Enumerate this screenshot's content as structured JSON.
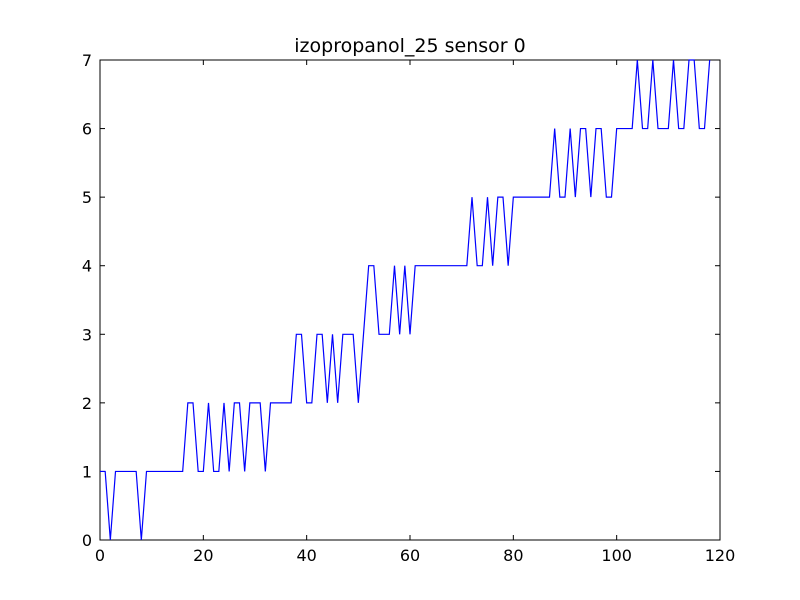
{
  "chart_data": {
    "type": "line",
    "title": "izopropanol_25 sensor 0",
    "xlabel": "",
    "ylabel": "",
    "xlim": [
      0,
      120
    ],
    "ylim": [
      0,
      7
    ],
    "xticks": [
      "0",
      "20",
      "40",
      "60",
      "80",
      "100",
      "120"
    ],
    "yticks": [
      "0",
      "1",
      "2",
      "3",
      "4",
      "5",
      "6",
      "7"
    ],
    "grid": false,
    "legend": "none",
    "line_color": "#0000ff",
    "series": [
      {
        "x": [
          0,
          1,
          2,
          3,
          4,
          5,
          6,
          7,
          8,
          9,
          10,
          11,
          12,
          13,
          14,
          15,
          16,
          17,
          18,
          19,
          20,
          21,
          22,
          23,
          24,
          25,
          26,
          27,
          28,
          29,
          30,
          31,
          32,
          33,
          34,
          35,
          36,
          37,
          38,
          39,
          40,
          41,
          42,
          43,
          44,
          45,
          46,
          47,
          48,
          49,
          50,
          51,
          52,
          53,
          54,
          55,
          56,
          57,
          58,
          59,
          60,
          61,
          62,
          63,
          64,
          65,
          66,
          67,
          68,
          69,
          70,
          71,
          72,
          73,
          74,
          75,
          76,
          77,
          78,
          79,
          80,
          81,
          82,
          83,
          84,
          85,
          86,
          87,
          88,
          89,
          90,
          91,
          92,
          93,
          94,
          95,
          96,
          97,
          98,
          99,
          100,
          101,
          102,
          103,
          104,
          105,
          106,
          107,
          108,
          109,
          110,
          111,
          112,
          113,
          114,
          115,
          116,
          117,
          118
        ],
        "values": [
          1,
          1,
          0,
          1,
          1,
          1,
          1,
          1,
          0,
          1,
          1,
          1,
          1,
          1,
          1,
          1,
          1,
          2,
          2,
          1,
          1,
          2,
          1,
          1,
          2,
          1,
          2,
          2,
          1,
          2,
          2,
          2,
          1,
          2,
          2,
          2,
          2,
          2,
          3,
          3,
          2,
          2,
          3,
          3,
          2,
          3,
          2,
          3,
          3,
          3,
          2,
          3,
          4,
          4,
          3,
          3,
          3,
          4,
          3,
          4,
          3,
          4,
          4,
          4,
          4,
          4,
          4,
          4,
          4,
          4,
          4,
          4,
          5,
          4,
          4,
          5,
          4,
          5,
          5,
          4,
          5,
          5,
          5,
          5,
          5,
          5,
          5,
          5,
          6,
          5,
          5,
          6,
          5,
          6,
          6,
          5,
          6,
          6,
          5,
          5,
          6,
          6,
          6,
          6,
          7,
          6,
          6,
          7,
          6,
          6,
          6,
          7,
          6,
          6,
          7,
          7,
          6,
          6,
          7
        ]
      }
    ]
  }
}
